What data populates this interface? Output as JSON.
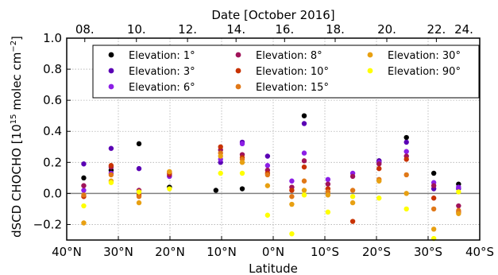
{
  "chart_data": {
    "type": "scatter",
    "xlabel": "Latitude",
    "ylabel": "dSCD CHOCHO [10",
    "ylabel_sup": "15",
    "ylabel_rest": " molec cm",
    "ylabel_sup2": "−2",
    "ylabel_end": "]",
    "top_axis_label": "Date [October 2016]",
    "xlim": [
      40,
      -40
    ],
    "ylim": [
      -0.3,
      1.0
    ],
    "grid": true,
    "legend_position": "top",
    "zero_line": 0,
    "x_ticks": [
      {
        "value": 40,
        "label": "40°N"
      },
      {
        "value": 30,
        "label": "30°N"
      },
      {
        "value": 20,
        "label": "20°N"
      },
      {
        "value": 10,
        "label": "10°N"
      },
      {
        "value": 0,
        "label": "0°N"
      },
      {
        "value": -10,
        "label": "10°S"
      },
      {
        "value": -20,
        "label": "20°S"
      },
      {
        "value": -30,
        "label": "30°S"
      },
      {
        "value": -40,
        "label": "40°S"
      }
    ],
    "y_ticks": [
      {
        "value": 1.0,
        "label": "1.0"
      },
      {
        "value": 0.8,
        "label": "0.8"
      },
      {
        "value": 0.6,
        "label": "0.6"
      },
      {
        "value": 0.4,
        "label": "0.4"
      },
      {
        "value": 0.2,
        "label": "0.2"
      },
      {
        "value": 0.0,
        "label": "0.0"
      },
      {
        "value": -0.2,
        "label": "−0.2"
      }
    ],
    "top_ticks": [
      {
        "value": 36.5,
        "label": "08."
      },
      {
        "value": 26.5,
        "label": "10."
      },
      {
        "value": 16.6,
        "label": "12."
      },
      {
        "value": 7.2,
        "label": "14."
      },
      {
        "value": -2.2,
        "label": "16."
      },
      {
        "value": -12.0,
        "label": "18."
      },
      {
        "value": -22.0,
        "label": "20."
      },
      {
        "value": -31.6,
        "label": "22."
      },
      {
        "value": -41.3,
        "label": "24."
      }
    ],
    "series": [
      {
        "name": "Elevation:  1°",
        "color": "#000000",
        "x": [
          36.7,
          31.4,
          26.0,
          20.1,
          11.1,
          6.0,
          -6.0,
          -20.5,
          -25.8,
          -31.1,
          -35.9
        ],
        "y": [
          0.1,
          0.15,
          0.32,
          0.04,
          0.02,
          0.03,
          0.5,
          0.21,
          0.36,
          0.13,
          0.06
        ]
      },
      {
        "name": "Elevation:  3°",
        "color": "#5a00b4",
        "x": [
          36.7,
          31.4,
          26.0,
          20.1,
          10.2,
          6.0,
          1.1,
          -6.0,
          -20.5,
          -25.8,
          -31.1,
          -35.9
        ],
        "y": [
          0.19,
          0.29,
          0.16,
          0.11,
          0.2,
          0.33,
          0.24,
          0.45,
          0.21,
          0.33,
          0.03,
          0.03
        ]
      },
      {
        "name": "Elevation:  6°",
        "color": "#8c1ee6",
        "x": [
          36.7,
          31.4,
          26.0,
          20.1,
          10.2,
          6.0,
          1.1,
          -3.6,
          -6.0,
          -10.6,
          -15.4,
          -20.5,
          -25.8,
          -31.1,
          -35.9
        ],
        "y": [
          0.02,
          0.13,
          0.01,
          0.11,
          0.22,
          0.32,
          0.18,
          0.08,
          0.26,
          0.09,
          0.13,
          0.2,
          0.27,
          0.07,
          0.04
        ]
      },
      {
        "name": "Elevation:  8°",
        "color": "#a0145a",
        "x": [
          36.7,
          31.4,
          26.0,
          20.1,
          10.2,
          6.0,
          1.1,
          -3.6,
          -6.0,
          -10.6,
          -15.4,
          -20.5,
          -25.8,
          -31.1,
          -35.9
        ],
        "y": [
          0.05,
          0.17,
          0.02,
          0.12,
          0.28,
          0.25,
          0.15,
          0.04,
          0.21,
          0.06,
          0.11,
          0.19,
          0.24,
          0.05,
          -0.08
        ]
      },
      {
        "name": "Elevation: 10°",
        "color": "#c83200",
        "x": [
          36.7,
          31.4,
          26.0,
          20.1,
          10.2,
          6.0,
          1.1,
          -3.6,
          -6.0,
          -10.6,
          -15.4,
          -20.5,
          -25.8,
          -31.1,
          -35.9
        ],
        "y": [
          -0.02,
          0.18,
          -0.01,
          0.13,
          0.3,
          0.23,
          0.13,
          0.02,
          0.17,
          0.03,
          -0.18,
          0.16,
          0.22,
          -0.03,
          -0.12
        ]
      },
      {
        "name": "Elevation: 15°",
        "color": "#e07818",
        "x": [
          36.7,
          31.4,
          26.0,
          20.1,
          10.2,
          6.0,
          1.1,
          -3.6,
          -6.0,
          -10.6,
          -15.4,
          -20.5,
          -25.8,
          -31.1,
          -35.9
        ],
        "y": [
          -0.01,
          0.12,
          -0.02,
          0.14,
          0.26,
          0.22,
          0.12,
          -0.02,
          0.08,
          0.01,
          0.02,
          0.09,
          0.12,
          -0.1,
          -0.11
        ]
      },
      {
        "name": "Elevation: 30°",
        "color": "#e8a012",
        "x": [
          36.7,
          31.4,
          26.0,
          20.1,
          10.2,
          6.0,
          1.1,
          -3.6,
          -6.0,
          -10.6,
          -15.4,
          -20.5,
          -25.8,
          -31.1,
          -35.9
        ],
        "y": [
          -0.19,
          0.08,
          -0.06,
          0.14,
          0.24,
          0.2,
          0.05,
          -0.07,
          0.02,
          -0.01,
          -0.06,
          0.08,
          0.0,
          -0.23,
          -0.13
        ]
      },
      {
        "name": "Elevation: 90°",
        "color": "#ffff00",
        "x": [
          36.7,
          31.4,
          26.0,
          20.1,
          10.2,
          6.0,
          1.1,
          -3.6,
          -6.0,
          -10.6,
          -15.4,
          -20.5,
          -25.8,
          -31.1,
          -35.9
        ],
        "y": [
          -0.08,
          0.07,
          0.01,
          0.03,
          0.13,
          0.13,
          -0.14,
          -0.26,
          -0.01,
          -0.12,
          -0.02,
          -0.03,
          -0.1,
          -0.29,
          0.01
        ]
      }
    ]
  }
}
